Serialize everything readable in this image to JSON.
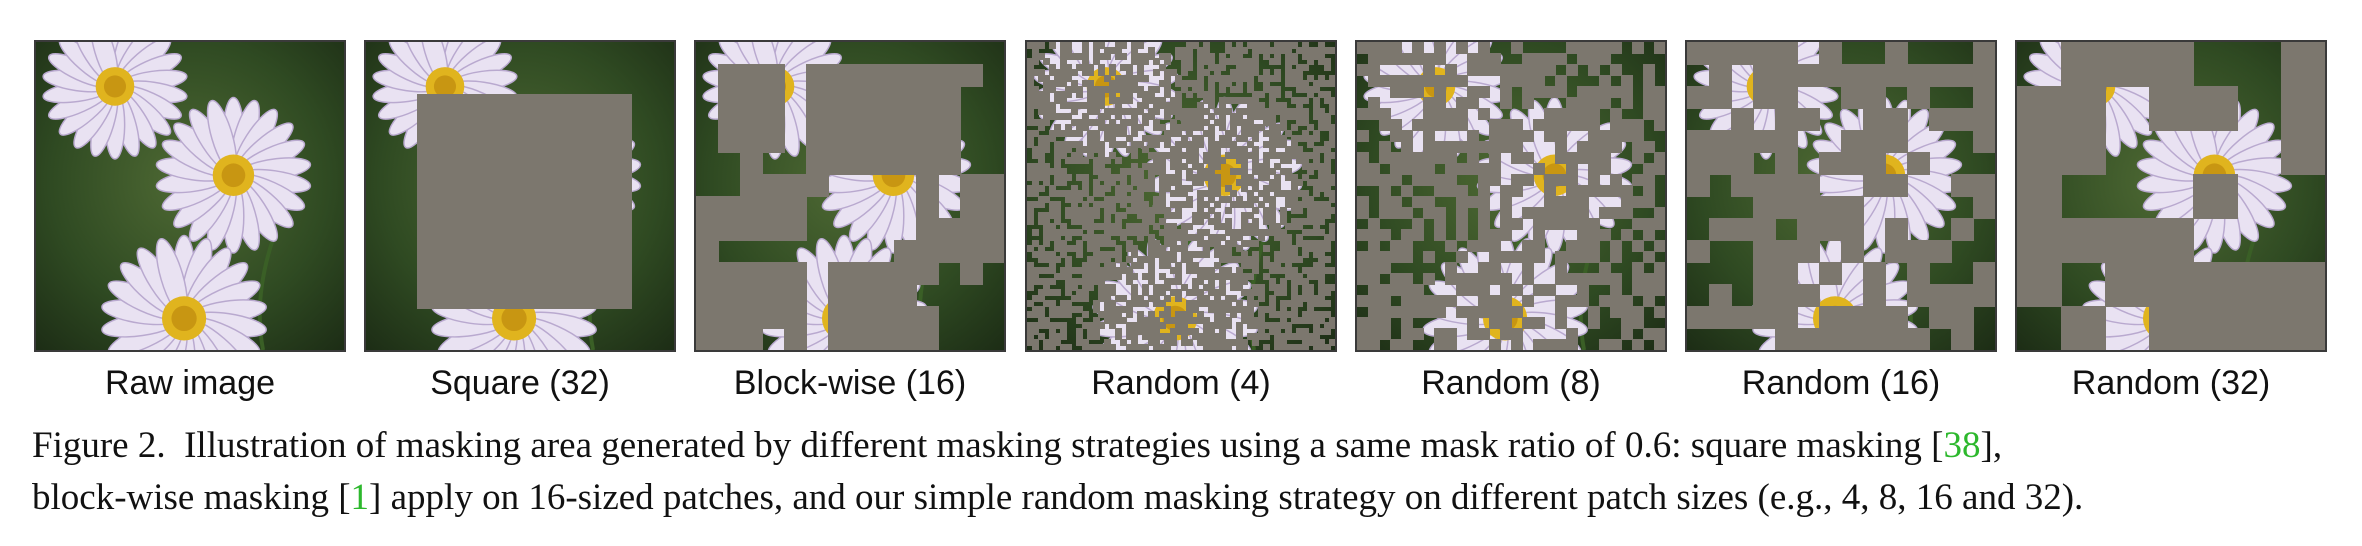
{
  "panels": [
    {
      "label": "Raw image",
      "mask": "none",
      "patch": 0
    },
    {
      "label": "Square (32)",
      "mask": "square",
      "patch": 32
    },
    {
      "label": "Block-wise (16)",
      "mask": "block",
      "patch": 16
    },
    {
      "label": "Random (4)",
      "mask": "random",
      "patch": 4
    },
    {
      "label": "Random (8)",
      "mask": "random",
      "patch": 8
    },
    {
      "label": "Random (16)",
      "mask": "random",
      "patch": 16
    },
    {
      "label": "Random (32)",
      "mask": "random",
      "patch": 32
    }
  ],
  "mask_ratio": 0.6,
  "mask_color": "#7c776e",
  "caption": {
    "figure_label": "Figure 2.",
    "part1": "Illustration of masking area generated by different masking strategies using a same mask ratio of 0.6: square masking [",
    "ref1": "38",
    "part2": "],",
    "part3": "block-wise masking [",
    "ref2": "1",
    "part4": "] apply on 16-sized patches, and our simple random masking strategy on different patch sizes (e.g., 4, 8, 16 and 32)."
  }
}
